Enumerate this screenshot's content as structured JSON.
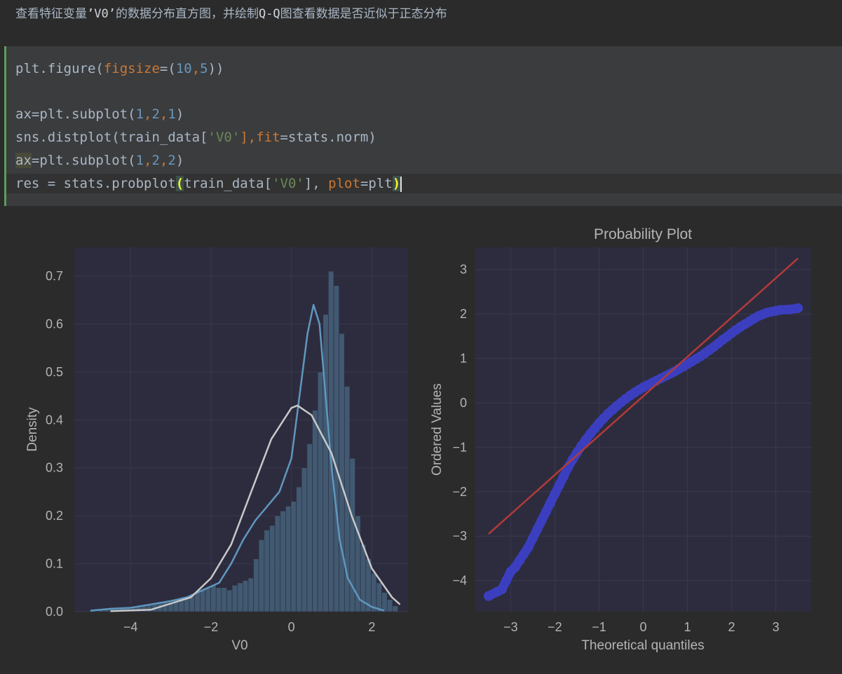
{
  "markdown": {
    "text_before": "查看特征变量",
    "code": "’V0’",
    "text_mid": "的数据分布直方图，并绘制",
    "code2": "Q-Q",
    "text_after": "图查看数据是否近似于正态分布"
  },
  "code_cell": {
    "lines": [
      {
        "segments": [
          {
            "text": "plt.figure(",
            "type": "plain"
          },
          {
            "text": "figsize",
            "type": "kw"
          },
          {
            "text": "=(",
            "type": "plain"
          },
          {
            "text": "10",
            "type": "num"
          },
          {
            "text": ",",
            "type": "kw"
          },
          {
            "text": "5",
            "type": "num"
          },
          {
            "text": "))",
            "type": "plain"
          }
        ]
      },
      {
        "segments": []
      },
      {
        "segments": [
          {
            "text": "ax=plt.subplot(",
            "type": "plain"
          },
          {
            "text": "1",
            "type": "num"
          },
          {
            "text": ",",
            "type": "kw"
          },
          {
            "text": "2",
            "type": "num"
          },
          {
            "text": ",",
            "type": "kw"
          },
          {
            "text": "1",
            "type": "num"
          },
          {
            "text": ")",
            "type": "plain"
          }
        ]
      },
      {
        "segments": [
          {
            "text": "sns.distplot(train_data[",
            "type": "plain"
          },
          {
            "text": "'V0'",
            "type": "str"
          },
          {
            "text": "],",
            "type": "kw"
          },
          {
            "text": "fit",
            "type": "kw"
          },
          {
            "text": "=stats.norm)",
            "type": "plain"
          }
        ]
      },
      {
        "segments": [
          {
            "text": "ax",
            "type": "hl"
          },
          {
            "text": "=plt.subplot(",
            "type": "plain"
          },
          {
            "text": "1",
            "type": "num"
          },
          {
            "text": ",",
            "type": "kw"
          },
          {
            "text": "2",
            "type": "num"
          },
          {
            "text": ",",
            "type": "kw"
          },
          {
            "text": "2",
            "type": "num"
          },
          {
            "text": ")",
            "type": "plain"
          }
        ]
      },
      {
        "segments": [
          {
            "text": "res = stats.probplot",
            "type": "plain"
          },
          {
            "text": "(",
            "type": "match"
          },
          {
            "text": "train_data[",
            "type": "plain"
          },
          {
            "text": "'V0'",
            "type": "str"
          },
          {
            "text": "], ",
            "type": "plain"
          },
          {
            "text": "plot",
            "type": "kw"
          },
          {
            "text": "=plt",
            "type": "plain"
          },
          {
            "text": ")",
            "type": "match"
          }
        ]
      }
    ]
  },
  "chart_data": [
    {
      "type": "bar",
      "subtype": "histogram-with-kde-and-normal-fit",
      "title": "",
      "xlabel": "V0",
      "ylabel": "Density",
      "xlim": [
        -5.4,
        2.9
      ],
      "ylim": [
        0,
        0.76
      ],
      "xticks": [
        -4,
        -2,
        0,
        2
      ],
      "yticks": [
        0.0,
        0.1,
        0.2,
        0.3,
        0.4,
        0.5,
        0.6,
        0.7
      ],
      "grid": true,
      "bins_start": -4.8,
      "bin_width": 0.133,
      "values": [
        0.005,
        0.005,
        0.005,
        0.005,
        0.008,
        0.008,
        0.01,
        0.01,
        0.012,
        0.015,
        0.018,
        0.02,
        0.022,
        0.02,
        0.025,
        0.028,
        0.03,
        0.035,
        0.04,
        0.045,
        0.05,
        0.055,
        0.05,
        0.05,
        0.045,
        0.055,
        0.06,
        0.065,
        0.07,
        0.11,
        0.15,
        0.17,
        0.18,
        0.2,
        0.21,
        0.22,
        0.23,
        0.26,
        0.3,
        0.35,
        0.42,
        0.5,
        0.62,
        0.71,
        0.68,
        0.58,
        0.47,
        0.32,
        0.2,
        0.14,
        0.11,
        0.08,
        0.06,
        0.04,
        0.025,
        0.012
      ],
      "series": [
        {
          "name": "",
          "kind": "kde",
          "color": "#5f97bf",
          "x": [
            -5.0,
            -4.5,
            -4.0,
            -3.5,
            -3.0,
            -2.6,
            -2.2,
            -1.8,
            -1.5,
            -1.2,
            -0.9,
            -0.6,
            -0.3,
            0.0,
            0.2,
            0.4,
            0.55,
            0.7,
            0.85,
            1.0,
            1.2,
            1.4,
            1.7,
            2.0,
            2.3
          ],
          "y": [
            0.002,
            0.006,
            0.008,
            0.015,
            0.022,
            0.03,
            0.045,
            0.06,
            0.1,
            0.15,
            0.19,
            0.22,
            0.25,
            0.32,
            0.45,
            0.58,
            0.64,
            0.6,
            0.45,
            0.3,
            0.15,
            0.07,
            0.025,
            0.01,
            0.002
          ]
        },
        {
          "name": "",
          "kind": "normal-fit",
          "color": "#c8c8c8",
          "x": [
            -4.5,
            -3.5,
            -2.5,
            -2.0,
            -1.5,
            -1.0,
            -0.5,
            0.0,
            0.15,
            0.5,
            1.0,
            1.5,
            2.0,
            2.5,
            2.7
          ],
          "y": [
            0.001,
            0.004,
            0.03,
            0.07,
            0.14,
            0.25,
            0.36,
            0.425,
            0.43,
            0.41,
            0.33,
            0.2,
            0.09,
            0.03,
            0.015
          ]
        }
      ]
    },
    {
      "type": "scatter",
      "title": "Probability Plot",
      "xlabel": "Theoretical quantiles",
      "ylabel": "Ordered Values",
      "xlim": [
        -3.8,
        3.8
      ],
      "ylim": [
        -4.7,
        3.5
      ],
      "xticks": [
        -3,
        -2,
        -1,
        0,
        1,
        2,
        3
      ],
      "yticks": [
        -4,
        -3,
        -2,
        -1,
        0,
        1,
        2,
        3
      ],
      "grid": true,
      "series": [
        {
          "name": "",
          "kind": "points",
          "color": "#3b3fbf",
          "x": [
            -3.5,
            -3.3,
            -3.2,
            -3.1,
            -3.0,
            -2.9,
            -2.8,
            -2.7,
            -2.6,
            -2.5,
            -2.4,
            -2.3,
            -2.2,
            -2.1,
            -2.0,
            -1.9,
            -1.8,
            -1.7,
            -1.6,
            -1.5,
            -1.4,
            -1.3,
            -1.2,
            -1.1,
            -1.0,
            -0.9,
            -0.8,
            -0.7,
            -0.6,
            -0.5,
            -0.4,
            -0.3,
            -0.2,
            -0.1,
            0.0,
            0.1,
            0.2,
            0.3,
            0.4,
            0.5,
            0.6,
            0.7,
            0.8,
            0.9,
            1.0,
            1.1,
            1.2,
            1.3,
            1.4,
            1.5,
            1.6,
            1.7,
            1.8,
            1.9,
            2.0,
            2.1,
            2.2,
            2.3,
            2.4,
            2.5,
            2.6,
            2.7,
            2.8,
            2.9,
            3.0,
            3.1,
            3.3,
            3.5
          ],
          "y": [
            -4.35,
            -4.25,
            -4.2,
            -4.0,
            -3.8,
            -3.7,
            -3.55,
            -3.4,
            -3.25,
            -3.05,
            -2.85,
            -2.65,
            -2.45,
            -2.25,
            -2.05,
            -1.85,
            -1.65,
            -1.45,
            -1.28,
            -1.12,
            -0.97,
            -0.83,
            -0.7,
            -0.58,
            -0.46,
            -0.35,
            -0.25,
            -0.16,
            -0.07,
            0.01,
            0.09,
            0.16,
            0.23,
            0.29,
            0.35,
            0.4,
            0.45,
            0.5,
            0.55,
            0.6,
            0.65,
            0.7,
            0.76,
            0.81,
            0.87,
            0.93,
            0.99,
            1.05,
            1.12,
            1.19,
            1.26,
            1.34,
            1.42,
            1.49,
            1.57,
            1.64,
            1.71,
            1.77,
            1.83,
            1.89,
            1.95,
            1.99,
            2.03,
            2.05,
            2.07,
            2.09,
            2.1,
            2.13
          ]
        },
        {
          "name": "",
          "kind": "fit-line",
          "color": "#b23a3a",
          "x": [
            -3.5,
            3.5
          ],
          "y": [
            -2.95,
            3.25
          ]
        }
      ]
    }
  ]
}
